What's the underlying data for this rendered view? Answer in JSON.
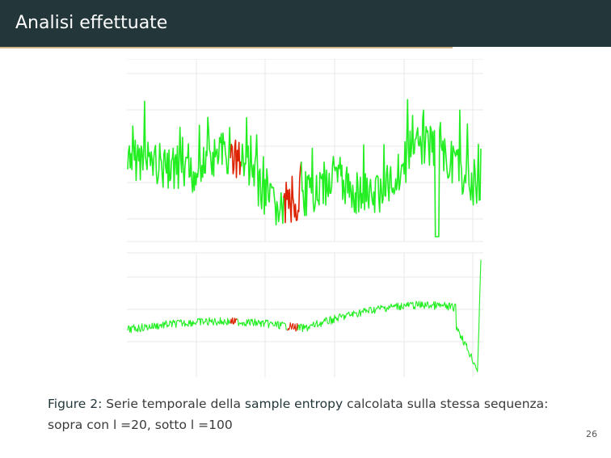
{
  "slide": {
    "title": "Analisi effettuate",
    "page_number": "26"
  },
  "figure": {
    "label": "Figure 2:",
    "caption_part1": " Serie temporale della ",
    "caption_emphasis": "sample entropy",
    "caption_part2": " calcolata sulla stessa sequenza: sopra con l =20, sotto l =100"
  },
  "colors": {
    "header_bg": "#23373b",
    "header_rule": "#d2b48c",
    "series_normal": "#22ee22",
    "series_highlight": "#dd2200",
    "grid": "#e6e6e6"
  }
}
